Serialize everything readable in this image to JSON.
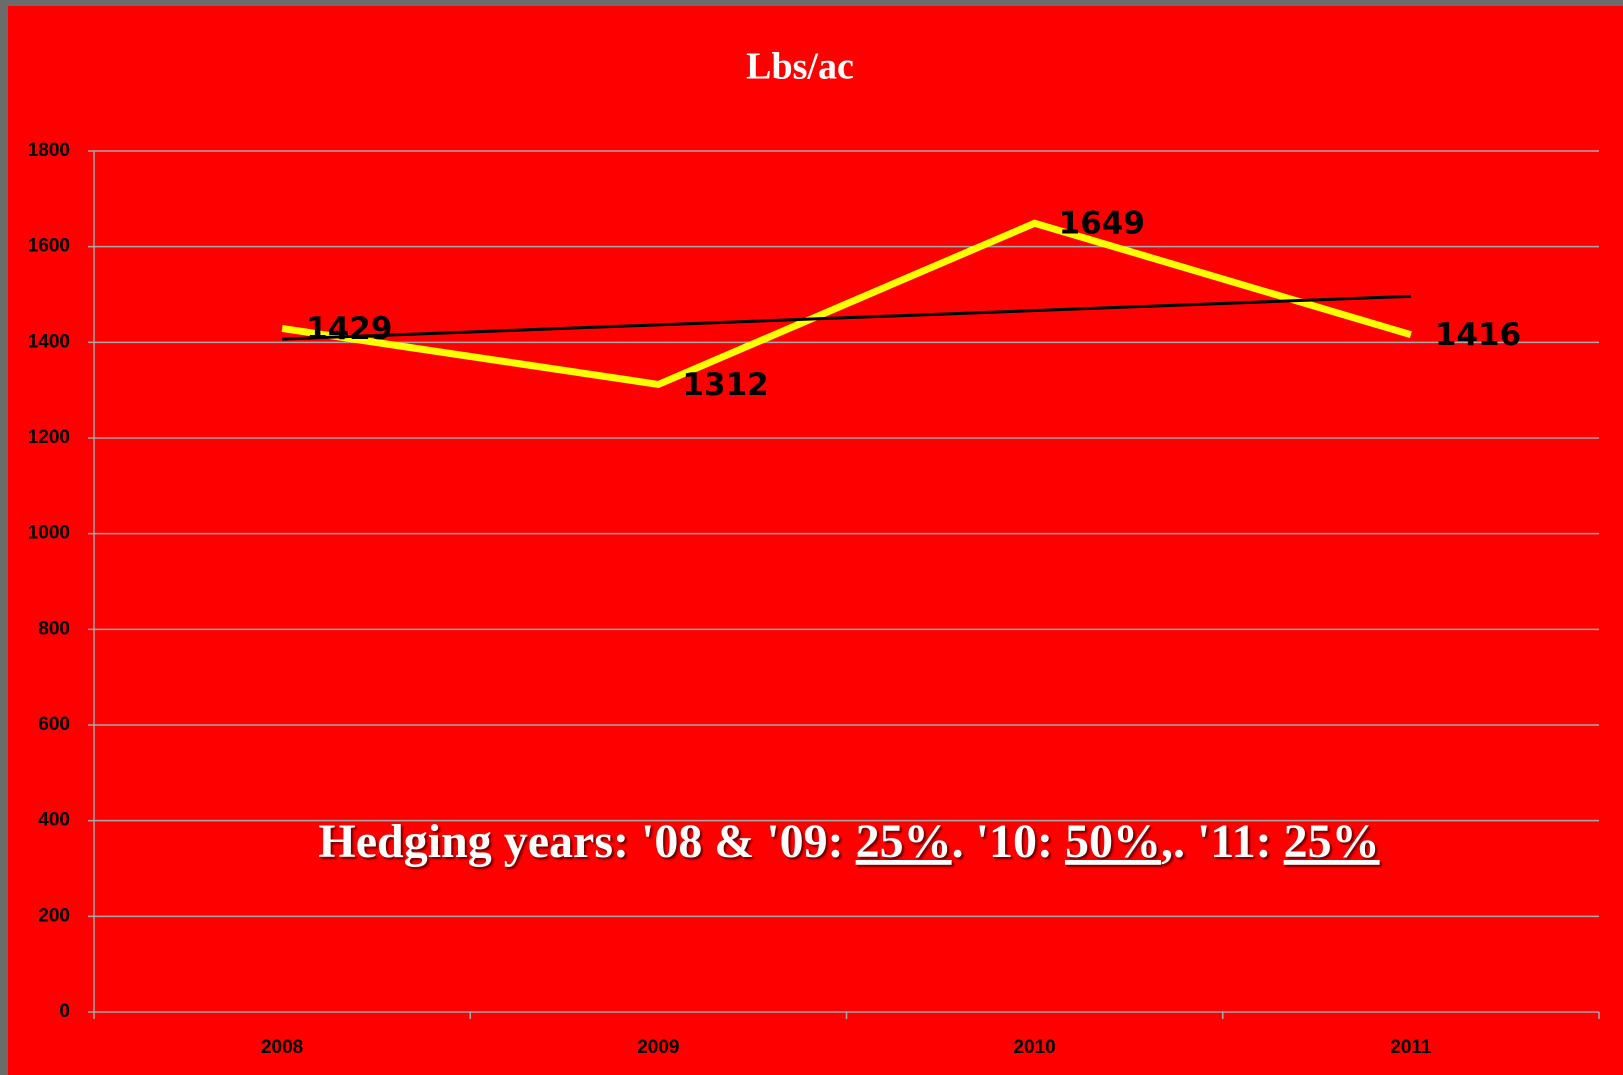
{
  "chart_data": {
    "type": "line",
    "title": "Lbs/ac",
    "categories": [
      "2008",
      "2009",
      "2010",
      "2011"
    ],
    "series": [
      {
        "color": "#ffff00",
        "values": [
          1429,
          1312,
          1649,
          1416
        ]
      }
    ],
    "trendline": "linear",
    "trendline_color": "#000000",
    "ylim": [
      0,
      1800
    ],
    "yticks": [
      0,
      200,
      400,
      600,
      800,
      1000,
      1200,
      1400,
      1600,
      1800
    ],
    "grid": true,
    "background": "#ff0000",
    "annotation": [
      "Hedging years: '08 & '09: ",
      "25%",
      ". '10: ",
      "50%",
      ",. '11: ",
      "25%"
    ]
  }
}
